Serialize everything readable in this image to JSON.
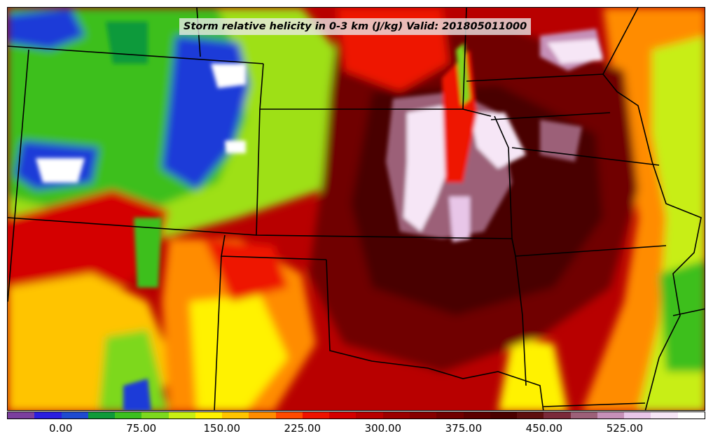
{
  "title": "Storm relative helicity in 0-3 km (J/kg) Valid: 201805011000",
  "colorbar": {
    "colors": [
      "#7b3f9e",
      "#2a1ee0",
      "#1e4bd0",
      "#0f9a3a",
      "#3cbf1e",
      "#7dd81e",
      "#c8ee14",
      "#fff200",
      "#ffc400",
      "#ff8c00",
      "#ff4a00",
      "#ee1200",
      "#d40000",
      "#b80000",
      "#9c0000",
      "#860000",
      "#700000",
      "#5c0000",
      "#4a0000",
      "#5e0f0f",
      "#7a2a3a",
      "#9c6078",
      "#c690b8",
      "#e8c6e8",
      "#f6e6f6",
      "#ffffff"
    ],
    "ticks": [
      "0.00",
      "75.00",
      "150.00",
      "225.00",
      "300.00",
      "375.00",
      "450.00",
      "525.00"
    ]
  },
  "palette": {
    "purple": "#7b3f9e",
    "blue": "#1e3ad8",
    "dark_green": "#0f9a3a",
    "green": "#3cbf1e",
    "lime": "#9ee014",
    "yellow": "#fff200",
    "orange": "#ff8c00",
    "red": "#ee1200",
    "dark_red": "#b80000",
    "maroon": "#700000",
    "deep_maroon": "#4a0000",
    "mauve": "#9c6078",
    "light_pink": "#f2d8f2",
    "white": "#ffffff"
  }
}
